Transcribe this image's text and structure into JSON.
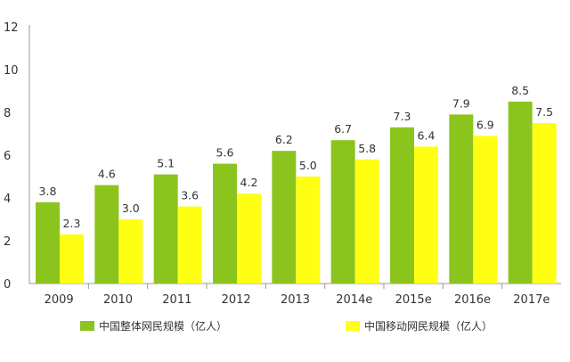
{
  "chart_data": {
    "type": "bar",
    "categories": [
      "2009",
      "2010",
      "2011",
      "2012",
      "2013",
      "2014e",
      "2015e",
      "2016e",
      "2017e"
    ],
    "series": [
      {
        "name": "中国整体网民规模（亿人）",
        "color": "#8CC41E",
        "values": [
          3.8,
          4.6,
          5.1,
          5.6,
          6.2,
          6.7,
          7.3,
          7.9,
          8.5
        ],
        "labels": [
          "3.8",
          "4.6",
          "5.1",
          "5.6",
          "6.2",
          "6.7",
          "7.3",
          "7.9",
          "8.5"
        ]
      },
      {
        "name": "中国移动网民规模（亿人）",
        "color": "#FFFF14",
        "values": [
          2.3,
          3.0,
          3.6,
          4.2,
          5.0,
          5.8,
          6.4,
          6.9,
          7.5
        ],
        "labels": [
          "2.3",
          "3.0",
          "3.6",
          "4.2",
          "5.0",
          "5.8",
          "6.4",
          "6.9",
          "7.5"
        ]
      }
    ],
    "ylim": [
      0,
      12
    ],
    "yticks": [
      "0",
      "2",
      "4",
      "6",
      "8",
      "10",
      "12"
    ],
    "grid": false,
    "legend_position": "bottom",
    "title": "",
    "xlabel": "",
    "ylabel": ""
  }
}
